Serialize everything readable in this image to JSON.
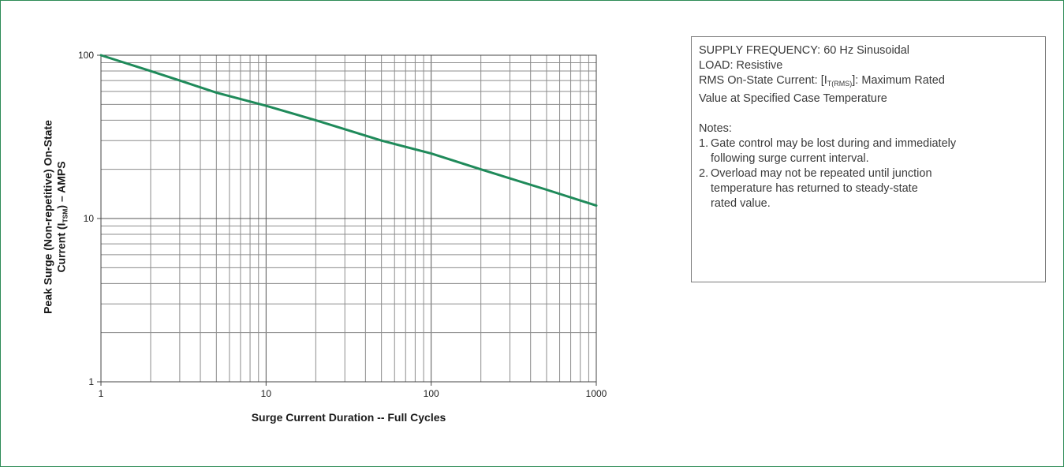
{
  "chart_data": {
    "type": "line",
    "xlabel": "Surge Current Duration -- Full Cycles",
    "ylabel_line1": "Peak Surge (Non-repetitive) On-State",
    "ylabel_line2_pre": "Current (I",
    "ylabel_line2_sub": "TSM",
    "ylabel_line2_post": ") – AMPS",
    "x_scale": "log",
    "y_scale": "log",
    "xlim": [
      1,
      1000
    ],
    "ylim": [
      1,
      100
    ],
    "x_ticks": [
      "1",
      "10",
      "100",
      "1000"
    ],
    "y_ticks": [
      "1",
      "10",
      "100"
    ],
    "grid": true,
    "series": [
      {
        "x": [
          1,
          2,
          3,
          5,
          10,
          20,
          50,
          100,
          200,
          500,
          1000
        ],
        "y": [
          100,
          80,
          70,
          59,
          49,
          40,
          30,
          25,
          20,
          15,
          12
        ],
        "color": "#1f8a5a"
      }
    ]
  },
  "notes_box": {
    "line1": "SUPPLY FREQUENCY: 60 Hz Sinusoidal",
    "line2": "LOAD: Resistive",
    "line3_pre": "RMS On-State Current: [I",
    "line3_sub": "T(RMS)",
    "line3_post": "]: Maximum Rated",
    "line4": "Value at Specified Case Temperature",
    "notes_title": "Notes:",
    "note1_num": "1.",
    "note1_line1": "Gate control may be lost during and immediately",
    "note1_line2": "following surge current interval.",
    "note2_num": "2.",
    "note2_line1": "Overload may not be repeated until junction",
    "note2_line2": "temperature has returned to steady-state",
    "note2_line3": "rated value."
  },
  "colors": {
    "frame": "#2e8b57",
    "line": "#1f8a5a",
    "grid": "#8c8c8c"
  }
}
